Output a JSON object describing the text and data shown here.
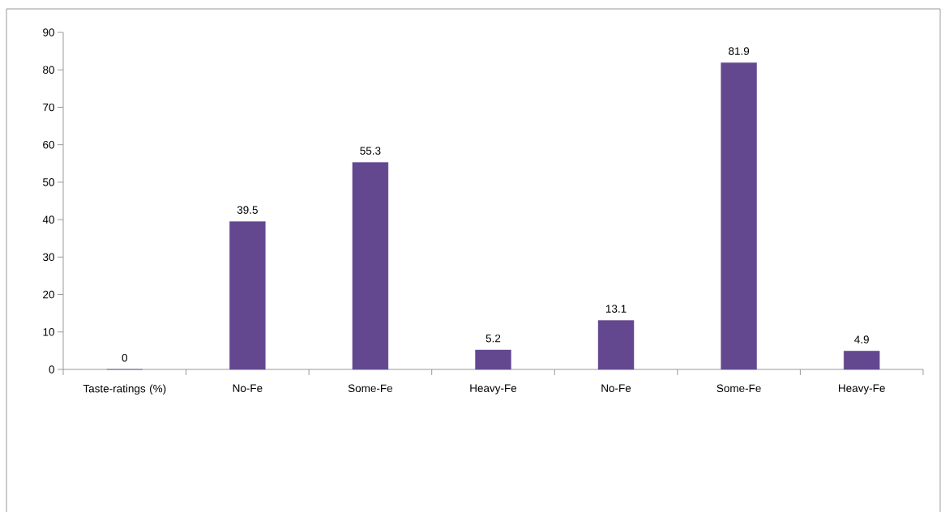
{
  "chart_data": {
    "type": "bar",
    "categories": [
      "Taste-ratings (%)",
      "No-Fe",
      "Some-Fe",
      "Heavy-Fe",
      "No-Fe",
      "Some-Fe",
      "Heavy-Fe"
    ],
    "values": [
      0,
      39.5,
      55.3,
      5.2,
      13.1,
      81.9,
      4.9
    ],
    "color": "#634890",
    "ylim": [
      0,
      90
    ],
    "yticks": [
      0,
      10,
      20,
      30,
      40,
      50,
      60,
      70,
      80,
      90
    ],
    "data_labels": true
  }
}
